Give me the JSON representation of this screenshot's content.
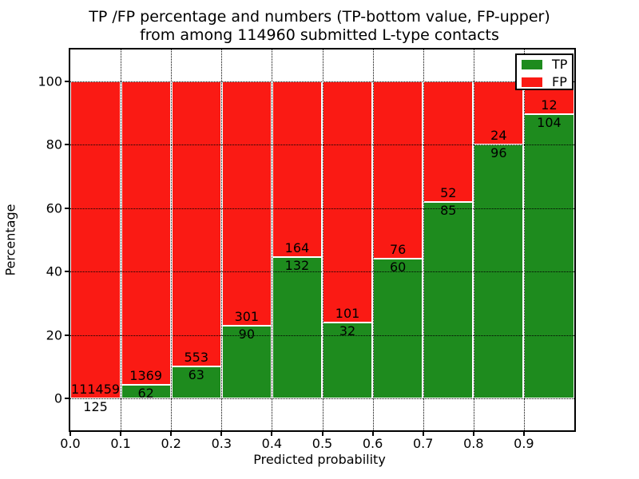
{
  "title": {
    "line1": "TP /FP percentage and numbers (TP-bottom value, FP-upper)",
    "line2": "from among 114960 submitted L-type contacts"
  },
  "axes": {
    "xlabel": "Predicted probability",
    "ylabel": "Percentage"
  },
  "colors": {
    "tp": "#1e8b1e",
    "fp": "#fa1a14",
    "background": "#ffffff",
    "text": "#000000",
    "grid": "#000000"
  },
  "chart_data": {
    "type": "bar",
    "subtype": "stacked-percentage-histogram",
    "title": "TP /FP percentage and numbers (TP-bottom value, FP-upper) from among 114960 submitted L-type contacts",
    "total_contacts": 114960,
    "xlabel": "Predicted probability",
    "ylabel": "Percentage",
    "xlim": [
      0.0,
      1.0
    ],
    "ylim": [
      -10,
      110
    ],
    "bin_width": 0.1,
    "bin_starts": [
      0.0,
      0.1,
      0.2,
      0.3,
      0.4,
      0.5,
      0.6,
      0.7,
      0.8,
      0.9
    ],
    "x_tick_labels": [
      "0.0",
      "0.1",
      "0.2",
      "0.3",
      "0.4",
      "0.5",
      "0.6",
      "0.7",
      "0.8",
      "0.9"
    ],
    "y_ticks": [
      0,
      20,
      40,
      60,
      80,
      100
    ],
    "grid": {
      "style": "dotted",
      "color": "#000000"
    },
    "categories": [
      "0.0-0.1",
      "0.1-0.2",
      "0.2-0.3",
      "0.3-0.4",
      "0.4-0.5",
      "0.5-0.6",
      "0.6-0.7",
      "0.7-0.8",
      "0.8-0.9",
      "0.9-1.0"
    ],
    "series": [
      {
        "name": "TP",
        "color": "#1e8b1e",
        "values": [
          125,
          62,
          63,
          90,
          132,
          32,
          60,
          85,
          96,
          104
        ]
      },
      {
        "name": "FP",
        "color": "#fa1a14",
        "values": [
          111459,
          1369,
          553,
          301,
          164,
          101,
          76,
          52,
          24,
          12
        ]
      }
    ],
    "tp_percentages": [
      0.11,
      4.33,
      10.23,
      23.02,
      44.59,
      24.06,
      44.12,
      62.04,
      80.0,
      89.66
    ],
    "legend": {
      "position": "upper-right",
      "entries": [
        {
          "label": "TP",
          "color": "#1e8b1e"
        },
        {
          "label": "FP",
          "color": "#fa1a14"
        }
      ]
    }
  }
}
